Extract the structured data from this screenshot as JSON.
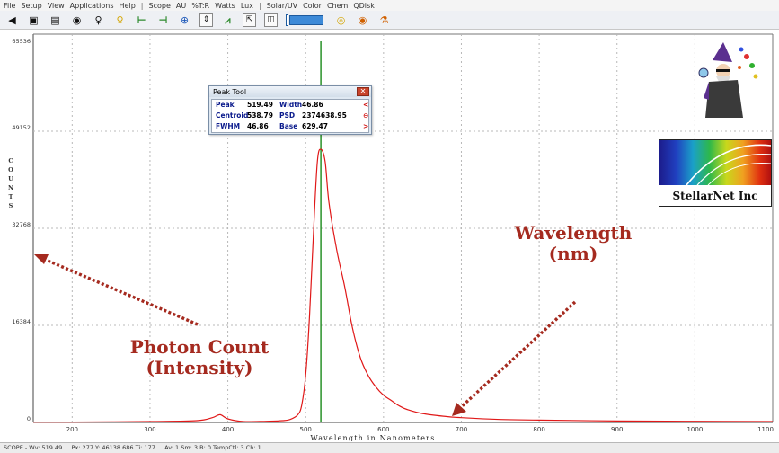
{
  "menu": {
    "items": [
      "File",
      "Setup",
      "View",
      "Applications",
      "Help",
      "|",
      "Scope",
      "AU",
      "%T:R",
      "Watts",
      "Lux",
      "|",
      "Solar/UV",
      "Color",
      "Chem",
      "QDisk"
    ]
  },
  "toolbar": {
    "icons": [
      {
        "name": "open-icon",
        "glyph": "◀",
        "color": "k"
      },
      {
        "name": "save-icon",
        "glyph": "▣",
        "color": "k"
      },
      {
        "name": "print-icon",
        "glyph": "▤",
        "color": "k"
      },
      {
        "name": "camera-icon",
        "glyph": "◉",
        "color": "k"
      },
      {
        "name": "lamp-icon",
        "glyph": "♀",
        "color": "k"
      },
      {
        "name": "bulb-icon",
        "glyph": "♀",
        "color": "y"
      },
      {
        "name": "cursor-left-icon",
        "glyph": "⊢",
        "color": "g"
      },
      {
        "name": "cursor-right-icon",
        "glyph": "⊣",
        "color": "g"
      },
      {
        "name": "zoom-icon",
        "glyph": "⊕",
        "color": "b"
      },
      {
        "name": "autoscale-y-icon",
        "glyph": "⇕",
        "color": "k",
        "boxed": true
      },
      {
        "name": "peak-icon",
        "glyph": "⩘",
        "color": "g"
      },
      {
        "name": "scale-icon",
        "glyph": "⇱",
        "color": "k",
        "boxed": true
      },
      {
        "name": "window-icon",
        "glyph": "◫",
        "color": "k",
        "boxed": true
      }
    ],
    "trailing_icons": [
      {
        "name": "color-circle-icon",
        "glyph": "◎",
        "color": "y"
      },
      {
        "name": "color-wheel-icon",
        "glyph": "◉",
        "color": "o"
      },
      {
        "name": "chem-flask-icon",
        "glyph": "⚗",
        "color": "o"
      }
    ]
  },
  "peak_tool": {
    "title": "Peak Tool",
    "close_glyph": "✕",
    "rows": [
      {
        "l1": "Peak",
        "v1": "519.49",
        "l2": "Width",
        "v2": "46.86",
        "arrow": "<"
      },
      {
        "l1": "Centroid",
        "v1": "538.79",
        "l2": "PSD",
        "v2": "2374638.95",
        "arrow": "⊖"
      },
      {
        "l1": "FWHM",
        "v1": "46.86",
        "l2": "Base",
        "v2": "629.47",
        "arrow": ">"
      }
    ]
  },
  "annotations": {
    "photon_line1": "Photon Count",
    "photon_line2": "(Intensity)",
    "wave_line1": "Wavelength",
    "wave_line2": "(nm)"
  },
  "logo": {
    "text": "StellarNet Inc"
  },
  "status_text": "SCOPE  -  Wv: 519.49 ... Px: 277  Y: 46138.686  Ti: 177  ...  Av: 1  Sm: 3  B: 0  TempCtl: 3  Ch: 1",
  "colors": {
    "spectrum": "#e01818",
    "cursor": "#1a8a1a",
    "grid": "#b8b8b8",
    "arrow": "#a52a1f"
  },
  "chart_data": {
    "type": "line",
    "title": "",
    "xlabel": "Wavelength in Nanometers",
    "ylabel": "COUNTS",
    "xlim": [
      150,
      1100
    ],
    "ylim": [
      0,
      65536
    ],
    "x_ticks": [
      200,
      300,
      400,
      500,
      600,
      700,
      800,
      900,
      1000,
      1100
    ],
    "y_ticks": [
      0,
      16384,
      32768,
      49152,
      65536
    ],
    "grid": true,
    "cursor_x": 519.49,
    "series": [
      {
        "color": "#e01818",
        "x": [
          150,
          200,
          300,
          360,
          380,
          390,
          400,
          420,
          450,
          470,
          480,
          490,
          495,
          500,
          505,
          510,
          515,
          519.5,
          525,
          530,
          540,
          550,
          560,
          570,
          580,
          590,
          600,
          610,
          620,
          630,
          650,
          680,
          700,
          750,
          800,
          900,
          1000,
          1100
        ],
        "y": [
          50,
          60,
          150,
          300,
          800,
          1300,
          600,
          150,
          200,
          300,
          500,
          1300,
          3000,
          8000,
          18000,
          32000,
          44000,
          46100,
          44000,
          37000,
          29000,
          23000,
          16000,
          11000,
          8000,
          6000,
          4600,
          3700,
          2800,
          2200,
          1500,
          1000,
          800,
          500,
          400,
          250,
          200,
          150
        ]
      }
    ]
  }
}
